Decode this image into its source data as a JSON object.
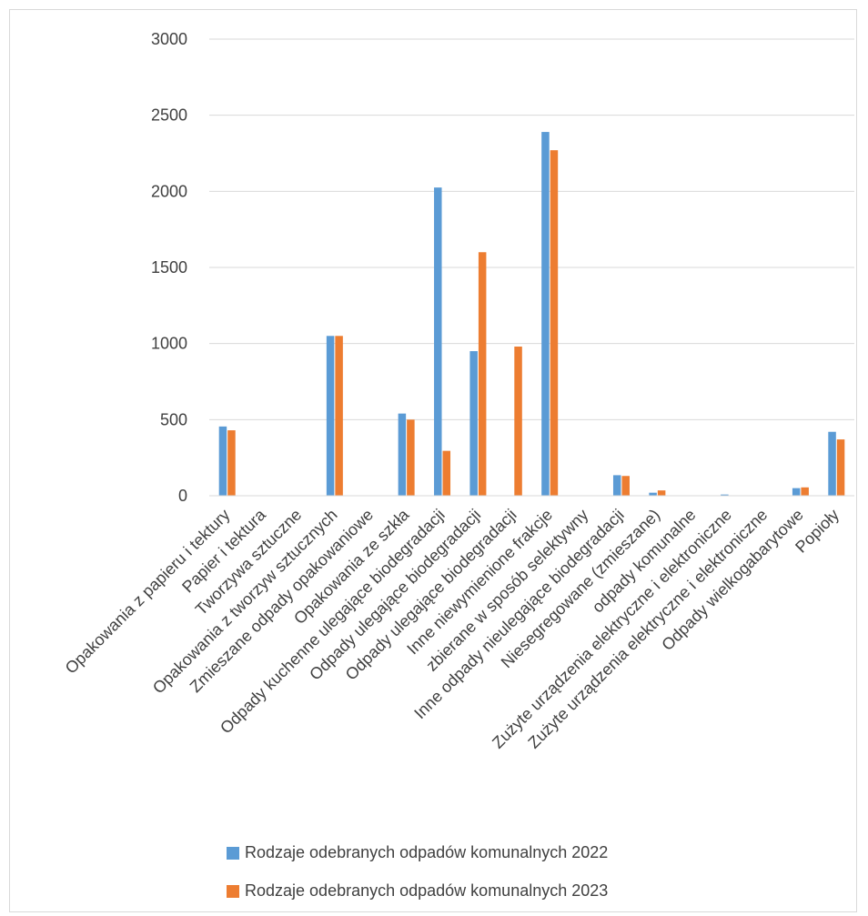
{
  "chart_data": {
    "type": "bar",
    "title": "",
    "xlabel": "",
    "ylabel": "",
    "ylim": [
      0,
      3000
    ],
    "yticks": [
      0,
      500,
      1000,
      1500,
      2000,
      2500,
      3000
    ],
    "grid": true,
    "legend_position": "bottom",
    "categories": [
      "Opakowania z papieru i tektury",
      "Papier i tektura",
      "Tworzywa sztuczne",
      "Opakowania z tworzyw sztucznych",
      "Zmieszane odpady opakowaniowe",
      "Opakowania ze szkła",
      "Odpady kuchenne ulegające biodegradacji",
      "Odpady ulegające biodegradacji",
      "Odpady ulegające biodegradacji",
      "Inne niewymienione frakcje",
      "zbierane w sposób selektywny",
      "Inne odpady nieulegające biodegradacji",
      "Niesegregowane (zmieszane)",
      "odpady komunalne",
      "Zużyte urządzenia elektryczne i elektroniczne",
      "Zużyte urządzenia elektryczne i elektroniczne",
      "Odpady wielkogabarytowe",
      "Popioły"
    ],
    "series": [
      {
        "name": "Rodzaje odebranych odpadów komunalnych  2022",
        "color": "#5B9BD5",
        "values": [
          455,
          0,
          0,
          1050,
          3,
          540,
          2025,
          950,
          0,
          2390,
          0,
          135,
          20,
          0,
          8,
          0,
          50,
          420
        ]
      },
      {
        "name": "Rodzaje odebranych odpadów komunalnych  2023",
        "color": "#ED7D31",
        "values": [
          430,
          0,
          0,
          1050,
          0,
          500,
          295,
          1600,
          980,
          2270,
          0,
          130,
          35,
          0,
          3,
          0,
          55,
          370
        ]
      }
    ]
  }
}
